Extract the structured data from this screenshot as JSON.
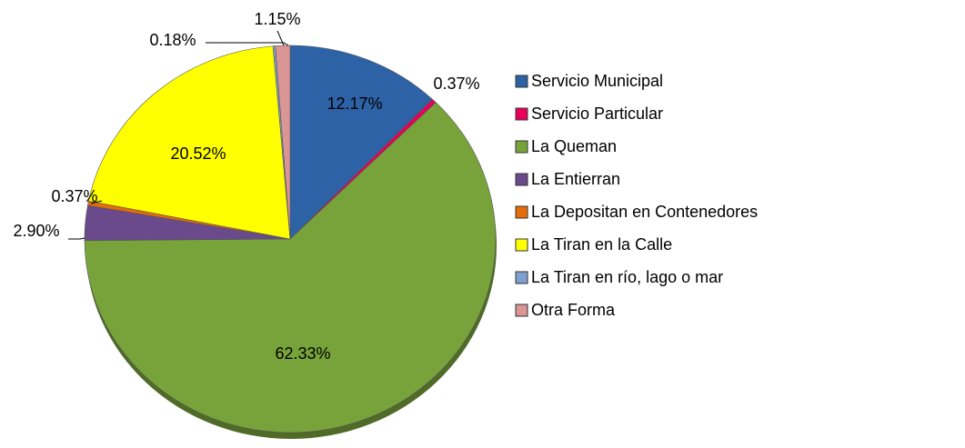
{
  "chart_data": {
    "type": "pie",
    "categories": [
      "Servicio Municipal",
      "Servicio Particular",
      "La Queman",
      "La Entierran",
      "La Depositan en Contenedores",
      "La Tiran en la Calle",
      "La Tiran en río, lago o mar",
      "Otra Forma"
    ],
    "values": [
      12.17,
      0.37,
      62.33,
      2.9,
      0.37,
      20.52,
      0.18,
      1.15
    ],
    "value_labels": [
      "12.17%",
      "0.37%",
      "62.33%",
      "2.90%",
      "0.37%",
      "20.52%",
      "0.18%",
      "1.15%"
    ],
    "colors": [
      "#2e62a6",
      "#e8005a",
      "#78a33b",
      "#6b4a8c",
      "#e46c0a",
      "#ffff00",
      "#7f9fd0",
      "#d99694"
    ],
    "legend": "right"
  }
}
